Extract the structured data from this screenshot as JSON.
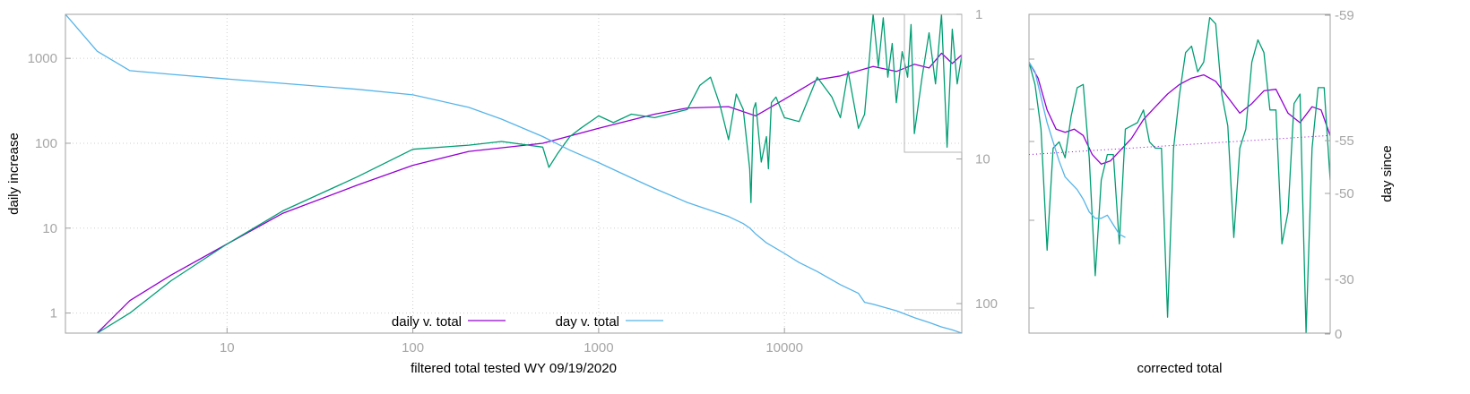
{
  "chart_data": [
    {
      "type": "line",
      "title": "",
      "xlabel": "filtered total tested WY 09/19/2020",
      "ylabel": "daily increase",
      "y2label": "",
      "xscale": "log",
      "yscale": "log",
      "y2scale": "log-reversed",
      "xlim": [
        1.35,
        90000
      ],
      "ylim": [
        0.58,
        3300
      ],
      "y2lim": [
        1,
        160
      ],
      "grid": true,
      "x_ticks": [
        {
          "value": 10,
          "label": "10"
        },
        {
          "value": 100,
          "label": "100"
        },
        {
          "value": 1000,
          "label": "1000"
        },
        {
          "value": 10000,
          "label": "10000"
        }
      ],
      "y_ticks": [
        {
          "value": 1,
          "label": "1"
        },
        {
          "value": 10,
          "label": "10"
        },
        {
          "value": 100,
          "label": "100"
        },
        {
          "value": 1000,
          "label": "1000"
        }
      ],
      "y2_ticks": [
        {
          "value": 1,
          "label": "1"
        },
        {
          "value": 10,
          "label": "10"
        },
        {
          "value": 100,
          "label": "100"
        }
      ],
      "legend_position": "bottom-center",
      "series": [
        {
          "name": "daily v. total",
          "color": "#9400d3",
          "axis": "y",
          "x": [
            2,
            3,
            5,
            10,
            20,
            50,
            100,
            200,
            500,
            1000,
            2000,
            3000,
            5000,
            7000,
            10000,
            15000,
            20000,
            30000,
            40000,
            50000,
            60000,
            70000,
            80000,
            90000
          ],
          "y": [
            0.58,
            1.4,
            2.8,
            6.5,
            15,
            32,
            55,
            80,
            100,
            150,
            220,
            260,
            270,
            210,
            330,
            560,
            620,
            800,
            700,
            850,
            770,
            1150,
            870,
            1100
          ]
        },
        {
          "name": "",
          "color": "#009e73",
          "axis": "y",
          "x": [
            2,
            3,
            5,
            10,
            20,
            50,
            100,
            200,
            300,
            500,
            540,
            600,
            700,
            800,
            1000,
            1200,
            1500,
            2000,
            3000,
            3500,
            4000,
            4500,
            5000,
            5500,
            6000,
            6500,
            6600,
            6800,
            7000,
            7500,
            8000,
            8200,
            8500,
            9000,
            10000,
            12000,
            15000,
            18000,
            20000,
            22000,
            25000,
            27000,
            30000,
            32000,
            34000,
            36000,
            38000,
            40000,
            43000,
            46000,
            48000,
            50000,
            55000,
            60000,
            65000,
            70000,
            75000,
            80000,
            85000,
            90000
          ],
          "y": [
            0.58,
            1,
            2.4,
            6.5,
            16,
            40,
            85,
            95,
            105,
            90,
            52,
            75,
            120,
            150,
            210,
            175,
            220,
            200,
            250,
            480,
            600,
            280,
            110,
            380,
            250,
            50,
            20,
            250,
            300,
            60,
            120,
            50,
            300,
            350,
            200,
            180,
            600,
            350,
            200,
            700,
            150,
            220,
            3300,
            800,
            3000,
            600,
            1500,
            300,
            1200,
            600,
            2500,
            130,
            600,
            2000,
            500,
            3300,
            90,
            2200,
            500,
            1100
          ]
        },
        {
          "name": "day v. total",
          "color": "#56b4e9",
          "axis": "y2",
          "x": [
            1.35,
            2,
            3,
            5,
            10,
            20,
            50,
            100,
            200,
            300,
            500,
            700,
            1000,
            1500,
            2000,
            3000,
            5000,
            6000,
            6500,
            7000,
            8000,
            10000,
            12000,
            15000,
            20000,
            25000,
            27000,
            30000,
            40000,
            50000,
            60000,
            70000,
            80000,
            90000
          ],
          "y2": [
            1,
            1.8,
            2.45,
            2.6,
            2.8,
            3,
            3.3,
            3.6,
            4.4,
            5.3,
            7,
            8.7,
            10.6,
            13.5,
            16,
            20,
            25,
            28,
            30,
            33,
            38,
            45,
            52,
            60,
            74,
            85,
            98,
            101,
            112,
            125,
            135,
            145,
            152,
            160
          ]
        }
      ]
    },
    {
      "type": "line",
      "title": "",
      "xlabel": "corrected total",
      "ylabel": "",
      "y2label": "day since",
      "xlim": [
        0,
        100
      ],
      "ylim": [
        0,
        100
      ],
      "grid": false,
      "y2_ticks": [
        {
          "value": -59,
          "label": "-59"
        },
        {
          "value": -55,
          "label": "-55"
        },
        {
          "value": -50,
          "label": "-50"
        },
        {
          "value": -30,
          "label": "-30"
        },
        {
          "value": 0,
          "label": "0"
        }
      ],
      "series": [
        {
          "color": "#9400d3",
          "style": "solid",
          "x": [
            0,
            3,
            6,
            9,
            12,
            15,
            18,
            21,
            24,
            27,
            30,
            34,
            38,
            42,
            46,
            50,
            54,
            58,
            62,
            66,
            70,
            74,
            78,
            82,
            86,
            90,
            94,
            97,
            100
          ],
          "y": [
            85,
            80,
            70,
            64,
            63,
            64,
            62,
            56,
            53,
            54,
            57,
            61,
            67,
            71,
            75,
            78,
            80,
            81,
            79,
            74,
            69,
            72,
            76,
            76.5,
            69,
            66,
            71,
            70,
            62
          ]
        },
        {
          "color": "#009e73",
          "style": "solid",
          "x": [
            0,
            2,
            4,
            6,
            8,
            10,
            12,
            14,
            16,
            18,
            20,
            22,
            24,
            26,
            28,
            30,
            32,
            34,
            36,
            38,
            40,
            42,
            44,
            46,
            48,
            50,
            52,
            54,
            56,
            58,
            60,
            62,
            64,
            66,
            68,
            70,
            72,
            74,
            76,
            78,
            80,
            82,
            84,
            86,
            88,
            90,
            92,
            94,
            96,
            98,
            100
          ],
          "y": [
            85,
            78,
            64,
            26,
            58,
            60,
            55,
            68,
            77,
            78,
            55,
            18,
            48,
            56,
            56,
            28,
            64,
            65,
            66,
            70,
            60,
            58,
            58,
            5,
            58,
            75,
            88,
            90,
            82,
            85,
            99,
            97,
            75,
            65,
            30,
            58,
            64,
            85,
            92,
            88,
            70,
            70,
            28,
            38,
            72,
            75,
            0,
            58,
            77,
            77,
            48
          ]
        },
        {
          "color": "#56b4e9",
          "style": "solid",
          "x": [
            0,
            2,
            4,
            6,
            8,
            10,
            12,
            14,
            16,
            18,
            20,
            22,
            24,
            26,
            28,
            30,
            32
          ],
          "y": [
            85,
            82,
            74,
            66,
            60,
            54,
            49,
            47,
            45,
            42,
            38,
            36,
            36,
            37,
            34,
            31,
            30
          ]
        },
        {
          "color": "#9400d3",
          "style": "dotted",
          "x": [
            0,
            100
          ],
          "y": [
            56,
            62
          ]
        }
      ]
    }
  ]
}
